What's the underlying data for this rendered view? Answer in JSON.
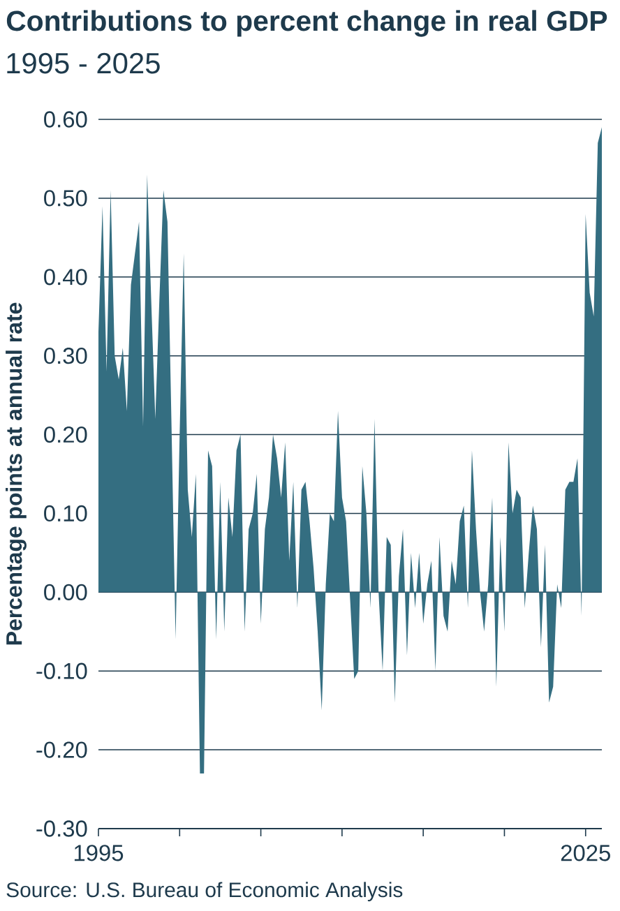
{
  "chart_data": {
    "type": "area",
    "title": "Contributions to percent change in real GDP",
    "subtitle": "1995 - 2025",
    "ylabel": "Percentage points at annual rate",
    "annotations": [
      "Source: U.S. Bureau of Economic Analysis"
    ],
    "x": [
      "1995-01",
      "1995-04",
      "1995-07",
      "1995-10",
      "1996-01",
      "1996-04",
      "1996-07",
      "1996-10",
      "1997-01",
      "1997-04",
      "1997-07",
      "1997-10",
      "1998-01",
      "1998-04",
      "1998-07",
      "1998-10",
      "1999-01",
      "1999-04",
      "1999-07",
      "1999-10",
      "2000-01",
      "2000-04",
      "2000-07",
      "2000-10",
      "2001-01",
      "2001-04",
      "2001-07",
      "2001-10",
      "2002-01",
      "2002-04",
      "2002-07",
      "2002-10",
      "2003-01",
      "2003-04",
      "2003-07",
      "2003-10",
      "2004-01",
      "2004-04",
      "2004-07",
      "2004-10",
      "2005-01",
      "2005-04",
      "2005-07",
      "2005-10",
      "2006-01",
      "2006-04",
      "2006-07",
      "2006-10",
      "2007-01",
      "2007-04",
      "2007-07",
      "2007-10",
      "2008-01",
      "2008-04",
      "2008-07",
      "2008-10",
      "2009-01",
      "2009-04",
      "2009-07",
      "2009-10",
      "2010-01",
      "2010-04",
      "2010-07",
      "2010-10",
      "2011-01",
      "2011-04",
      "2011-07",
      "2011-10",
      "2012-01",
      "2012-04",
      "2012-07",
      "2012-10",
      "2013-01",
      "2013-04",
      "2013-07",
      "2013-10",
      "2014-01",
      "2014-04",
      "2014-07",
      "2014-10",
      "2015-01",
      "2015-04",
      "2015-07",
      "2015-10",
      "2016-01",
      "2016-04",
      "2016-07",
      "2016-10",
      "2017-01",
      "2017-04",
      "2017-07",
      "2017-10",
      "2018-01",
      "2018-04",
      "2018-07",
      "2018-10",
      "2019-01",
      "2019-04",
      "2019-07",
      "2019-10",
      "2020-01",
      "2020-04",
      "2020-07",
      "2020-10",
      "2021-01",
      "2021-04",
      "2021-07",
      "2021-10",
      "2022-01",
      "2022-04",
      "2022-07",
      "2022-10",
      "2023-01",
      "2023-04",
      "2023-07",
      "2023-10",
      "2024-01",
      "2024-04",
      "2024-07",
      "2024-10",
      "2025-01",
      "2025-04",
      "2025-07",
      "2025-10",
      "2026-01"
    ],
    "values": [
      0.33,
      0.49,
      0.28,
      0.51,
      0.3,
      0.27,
      0.31,
      0.23,
      0.39,
      0.43,
      0.47,
      0.21,
      0.53,
      0.37,
      0.22,
      0.37,
      0.51,
      0.47,
      0.21,
      -0.06,
      0.2,
      0.43,
      0.13,
      0.07,
      0.15,
      -0.23,
      -0.23,
      0.18,
      0.16,
      -0.06,
      0.14,
      -0.05,
      0.12,
      0.07,
      0.18,
      0.2,
      -0.05,
      0.08,
      0.1,
      0.15,
      -0.04,
      0.08,
      0.12,
      0.2,
      0.17,
      0.12,
      0.19,
      0.04,
      0.14,
      -0.02,
      0.13,
      0.14,
      0.09,
      0.03,
      -0.05,
      -0.15,
      0.01,
      0.1,
      0.09,
      0.23,
      0.12,
      0.09,
      -0.01,
      -0.11,
      -0.1,
      0.16,
      0.1,
      -0.02,
      0.22,
      0.0,
      -0.1,
      0.07,
      0.06,
      -0.14,
      0.02,
      0.08,
      -0.08,
      0.05,
      -0.02,
      0.05,
      -0.04,
      0.01,
      0.04,
      -0.1,
      0.07,
      -0.03,
      -0.05,
      0.04,
      0.01,
      0.09,
      0.11,
      -0.02,
      0.18,
      0.08,
      0.0,
      -0.05,
      0.01,
      0.12,
      -0.12,
      0.07,
      -0.05,
      0.19,
      0.1,
      0.13,
      0.12,
      -0.02,
      0.05,
      0.11,
      0.08,
      -0.07,
      0.06,
      -0.14,
      -0.12,
      0.01,
      -0.02,
      0.13,
      0.14,
      0.14,
      0.17,
      -0.03,
      0.48,
      0.38,
      0.35,
      0.57,
      0.59
    ],
    "color": "#346e81",
    "xlim": [
      "1995-01",
      "2026-01"
    ],
    "xticks": [
      {
        "value": "1995",
        "label": "1995"
      },
      {
        "value": "2000",
        "label": null
      },
      {
        "value": "2005",
        "label": null
      },
      {
        "value": "2010",
        "label": null
      },
      {
        "value": "2015",
        "label": null
      },
      {
        "value": "2020",
        "label": null
      },
      {
        "value": "2025",
        "label": "2025"
      }
    ],
    "ylim": [
      -0.3,
      0.6
    ],
    "yticks": [
      {
        "value": -0.3,
        "label": "-0.30"
      },
      {
        "value": -0.2,
        "label": "-0.20"
      },
      {
        "value": -0.1,
        "label": "-0.10"
      },
      {
        "value": 0,
        "label": "0.00"
      },
      {
        "value": 0.1,
        "label": "0.10"
      },
      {
        "value": 0.2,
        "label": "0.20"
      },
      {
        "value": 0.3,
        "label": "0.30"
      },
      {
        "value": 0.4,
        "label": "0.40"
      },
      {
        "value": 0.5,
        "label": "0.50"
      },
      {
        "value": 0.6,
        "label": "0.60"
      }
    ],
    "grid": "y"
  }
}
